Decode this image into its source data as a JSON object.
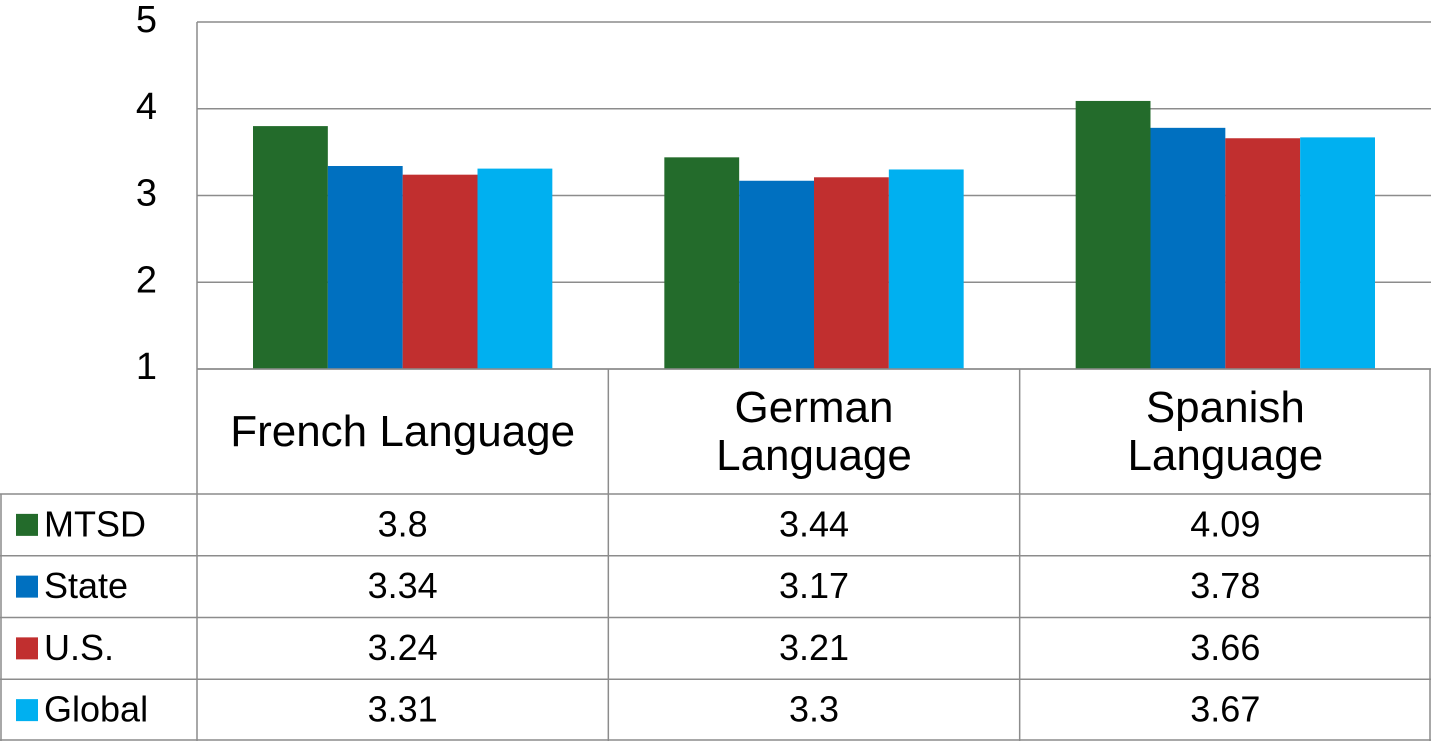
{
  "chart_data": {
    "type": "bar",
    "categories": [
      "French Language",
      "German Language",
      "Spanish Language"
    ],
    "series": [
      {
        "name": "MTSD",
        "color": "#236b2b",
        "values": [
          3.8,
          3.44,
          4.09
        ]
      },
      {
        "name": "State",
        "color": "#0070c0",
        "values": [
          3.34,
          3.17,
          3.78
        ]
      },
      {
        "name": "U.S.",
        "color": "#c12f2f",
        "values": [
          3.24,
          3.21,
          3.66
        ]
      },
      {
        "name": "Global",
        "color": "#00b0f0",
        "values": [
          3.31,
          3.3,
          3.67
        ]
      }
    ],
    "ylim": [
      1,
      5
    ],
    "yticks": [
      1,
      2,
      3,
      4,
      5
    ],
    "grid": true,
    "data_table": true
  }
}
